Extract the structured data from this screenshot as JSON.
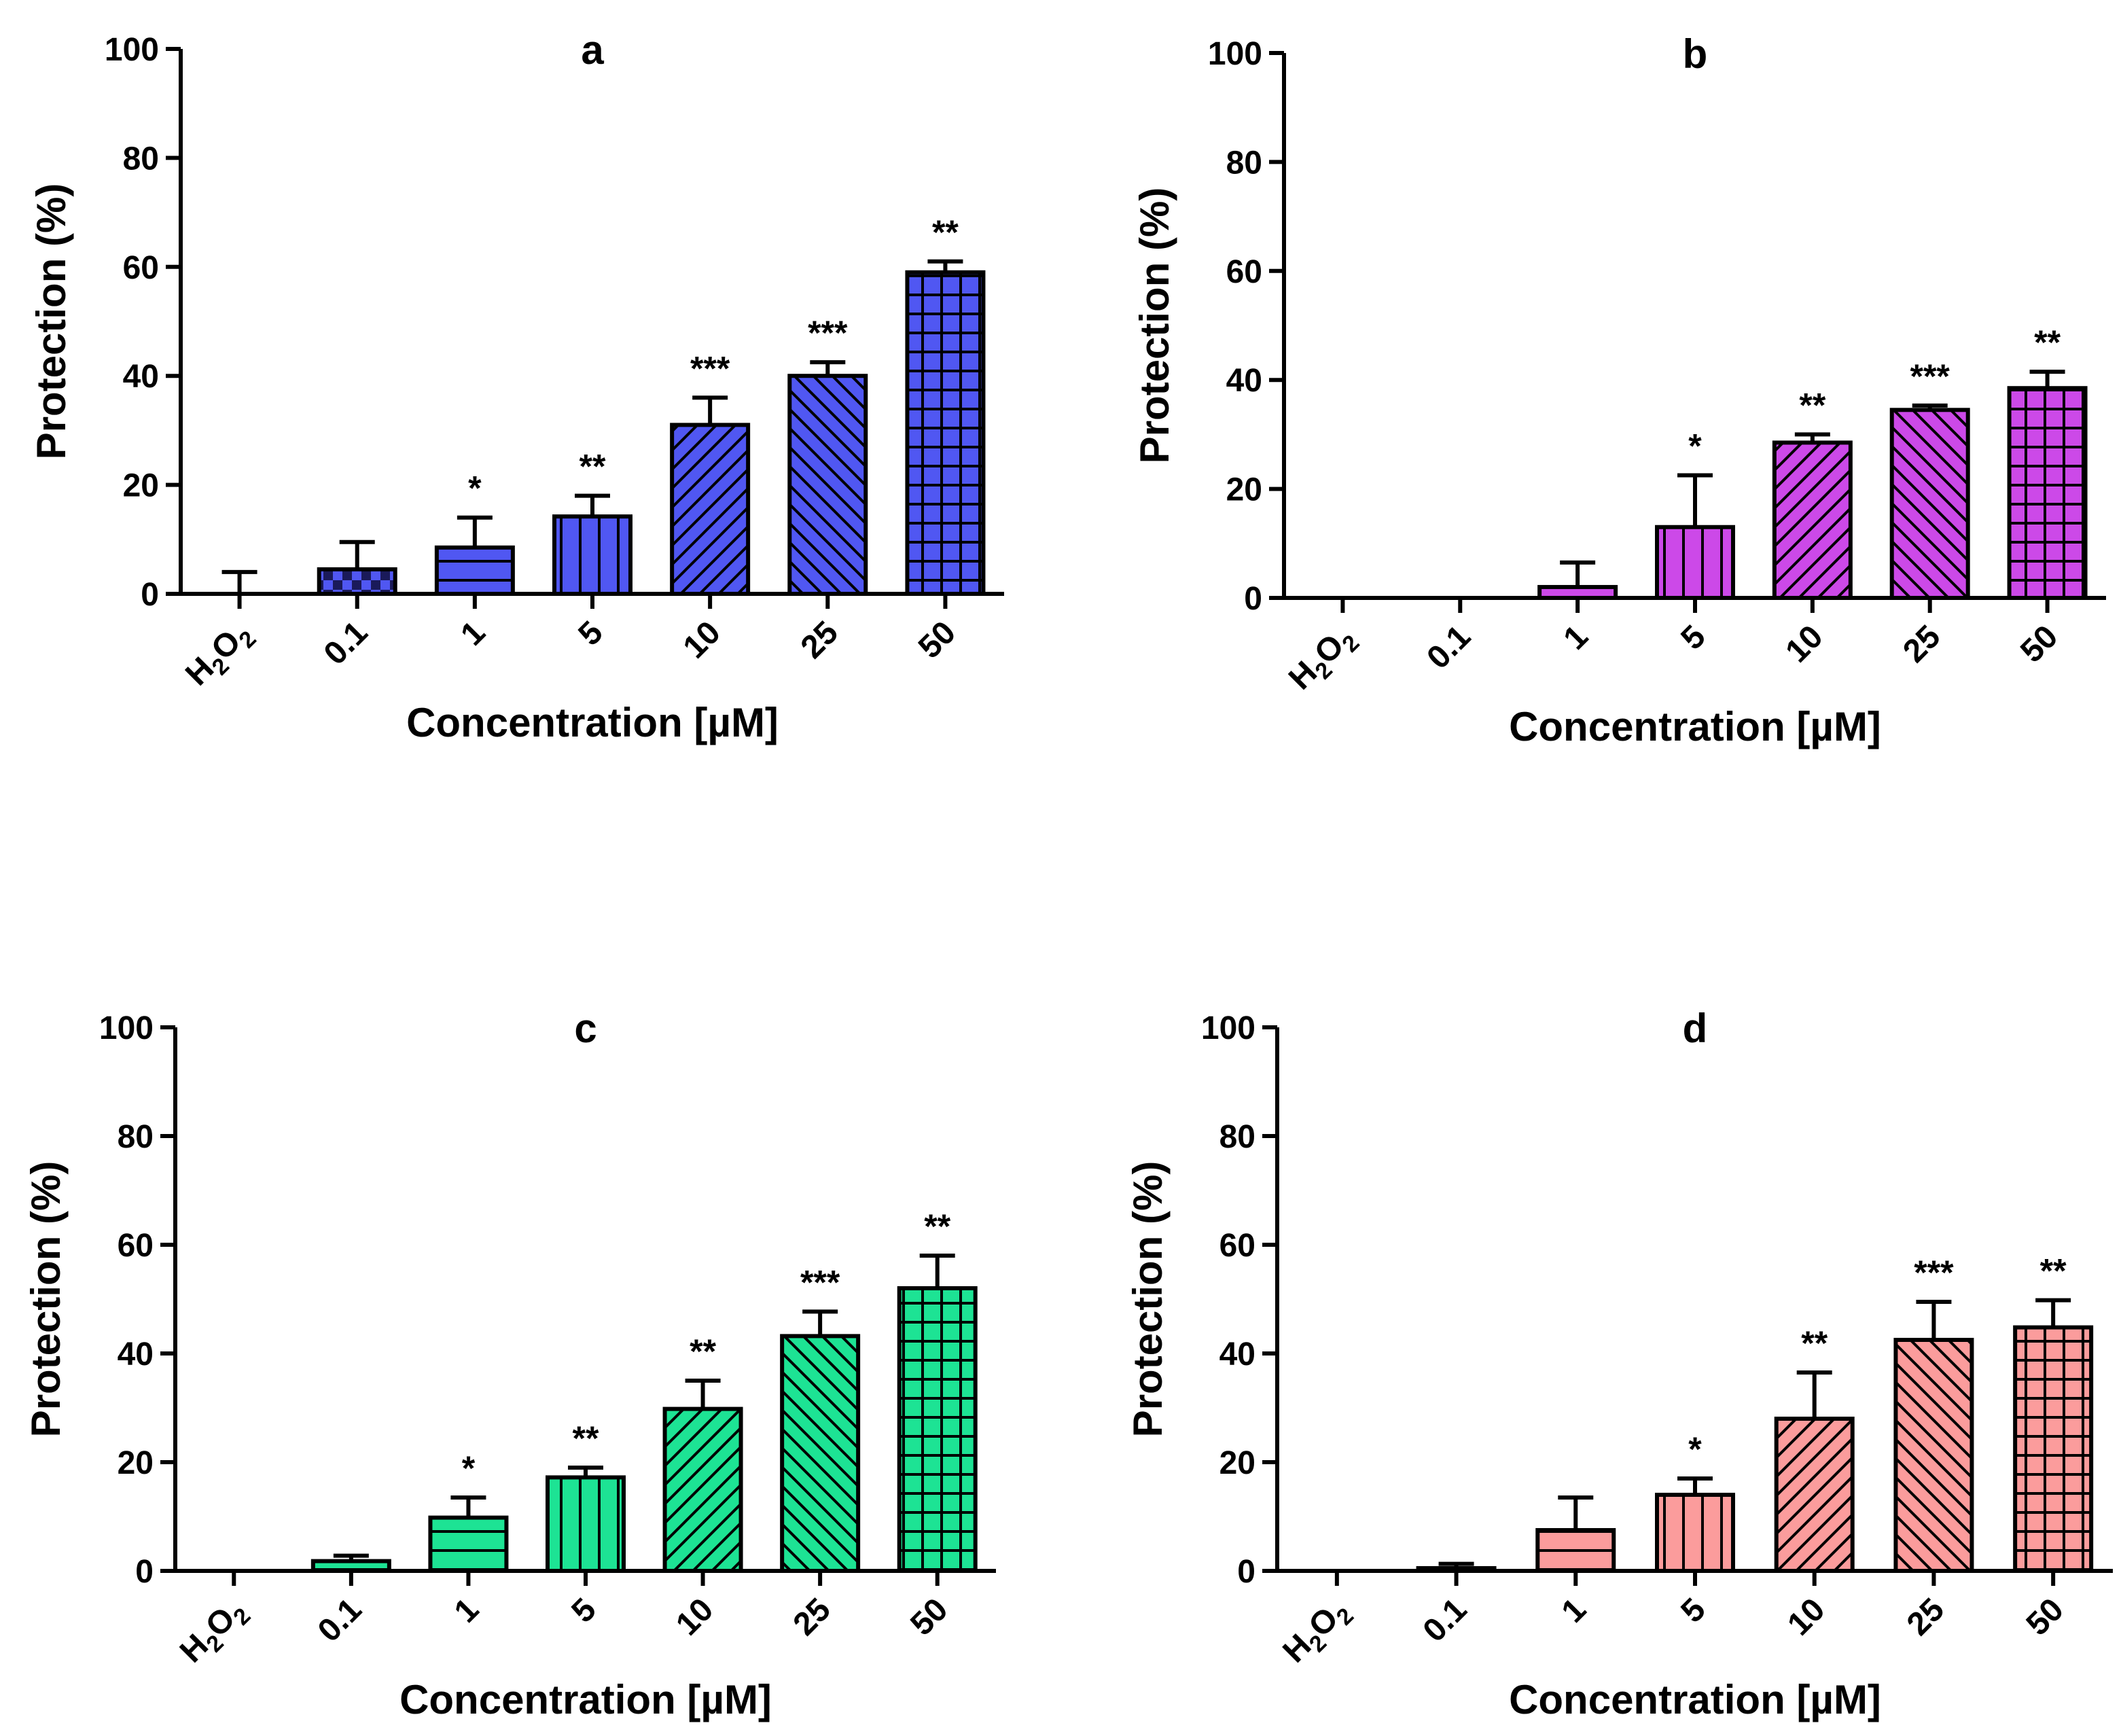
{
  "figure": {
    "x_tick_label_h2o2": {
      "h": "H",
      "sub1": "2",
      "o": "O",
      "sub2": "2"
    }
  },
  "chart_data": [
    {
      "type": "bar",
      "title": "a",
      "xlabel": "Concentration [µM]",
      "ylabel": "Protection (%)",
      "ylim": [
        0,
        100
      ],
      "yticks": [
        "0",
        "20",
        "40",
        "60",
        "80",
        "100"
      ],
      "categories": [
        "H2O2",
        "0.1",
        "1",
        "5",
        "10",
        "25",
        "50"
      ],
      "values": [
        0,
        4.5,
        8.5,
        14.2,
        31,
        40,
        59
      ],
      "errors": [
        4,
        5,
        5.5,
        3.8,
        5,
        2.5,
        2
      ],
      "significance": [
        "",
        "",
        "*",
        "**",
        "***",
        "***",
        "**"
      ],
      "patterns": [
        "none",
        "checker",
        "horizontal",
        "vertical",
        "diag-up",
        "diag-down",
        "grid"
      ],
      "color": "#5057f2"
    },
    {
      "type": "bar",
      "title": "b",
      "xlabel": "Concentration [µM]",
      "ylabel": "Protection (%)",
      "ylim": [
        0,
        100
      ],
      "yticks": [
        "0",
        "20",
        "40",
        "60",
        "80",
        "100"
      ],
      "categories": [
        "H2O2",
        "0.1",
        "1",
        "5",
        "10",
        "25",
        "50"
      ],
      "values": [
        0,
        0,
        2,
        13,
        28.5,
        34.5,
        38.5
      ],
      "errors": [
        0,
        0,
        4.5,
        9.5,
        1.5,
        0.8,
        3
      ],
      "significance": [
        "",
        "",
        "",
        "*",
        "**",
        "***",
        "**"
      ],
      "patterns": [
        "none",
        "none",
        "horizontal",
        "vertical",
        "diag-up",
        "diag-down",
        "grid"
      ],
      "color": "#cc49e8"
    },
    {
      "type": "bar",
      "title": "c",
      "xlabel": "Concentration [µM]",
      "ylabel": "Protection (%)",
      "ylim": [
        0,
        100
      ],
      "yticks": [
        "0",
        "20",
        "40",
        "60",
        "80",
        "100"
      ],
      "categories": [
        "H2O2",
        "0.1",
        "1",
        "5",
        "10",
        "25",
        "50"
      ],
      "values": [
        0,
        1.8,
        9.8,
        17.2,
        29.8,
        43.2,
        52
      ],
      "errors": [
        0,
        1,
        3.7,
        1.8,
        5.2,
        4.5,
        6
      ],
      "significance": [
        "",
        "",
        "*",
        "**",
        "**",
        "***",
        "**"
      ],
      "patterns": [
        "none",
        "horizontal",
        "horizontal",
        "vertical",
        "diag-up",
        "diag-down",
        "grid"
      ],
      "color": "#1de394"
    },
    {
      "type": "bar",
      "title": "d",
      "xlabel": "Concentration [µM]",
      "ylabel": "Protection (%)",
      "ylim": [
        0,
        100
      ],
      "yticks": [
        "0",
        "20",
        "40",
        "60",
        "80",
        "100"
      ],
      "categories": [
        "H2O2",
        "0.1",
        "1",
        "5",
        "10",
        "25",
        "50"
      ],
      "values": [
        0,
        0.5,
        7.5,
        14,
        28,
        42.5,
        44.8
      ],
      "errors": [
        0,
        0.8,
        6,
        3,
        8.5,
        7,
        5
      ],
      "significance": [
        "",
        "",
        "",
        "*",
        "**",
        "***",
        "**"
      ],
      "patterns": [
        "none",
        "none",
        "horizontal",
        "vertical",
        "diag-up",
        "diag-down",
        "grid"
      ],
      "color": "#fb9c9c"
    }
  ]
}
